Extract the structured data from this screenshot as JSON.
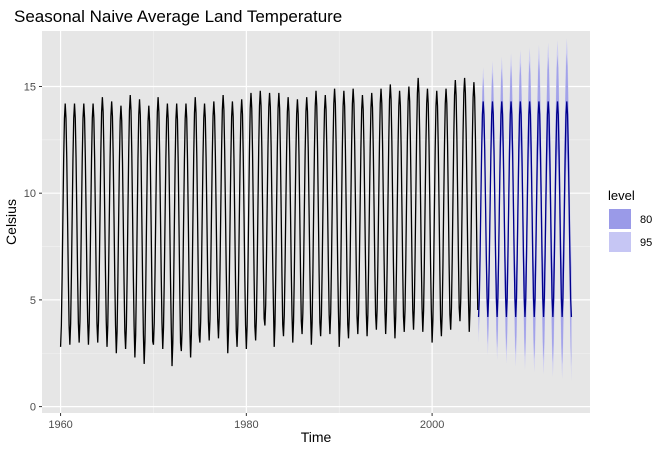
{
  "chart_data": {
    "type": "line",
    "title": "Seasonal Naive Average Land Temperature",
    "xlabel": "Time",
    "ylabel": "Celsius",
    "xlim": [
      1958,
      2017
    ],
    "ylim": [
      -0.3,
      17.6
    ],
    "x_ticks": [
      1960,
      1980,
      2000
    ],
    "y_ticks": [
      0,
      5,
      10,
      15
    ],
    "grid": true,
    "legend": {
      "title": "level",
      "placement": "right",
      "entries": [
        {
          "label": "80",
          "color": "#9a9ae8"
        },
        {
          "label": "95",
          "color": "#c6c6f4"
        }
      ]
    },
    "series": [
      {
        "kind": "observed",
        "color": "#000000",
        "start_year": 1960,
        "frequency": 12,
        "annual_peaks": [
          14.2,
          14.2,
          14.2,
          14.2,
          14.5,
          14.3,
          14.1,
          14.6,
          14.4,
          14.1,
          14.5,
          14.2,
          14.2,
          14.2,
          14.5,
          14.2,
          14.3,
          14.6,
          14.3,
          14.4,
          14.7,
          14.8,
          14.7,
          14.7,
          14.5,
          14.4,
          14.5,
          14.8,
          14.6,
          14.9,
          14.8,
          14.9,
          14.6,
          14.7,
          14.9,
          15.1,
          14.8,
          15.0,
          15.4,
          14.9,
          14.8,
          14.9,
          15.3,
          15.4,
          15.2
        ],
        "annual_troughs": [
          2.8,
          2.9,
          3.0,
          2.9,
          3.0,
          2.8,
          2.5,
          2.7,
          2.3,
          2.0,
          2.9,
          2.7,
          1.9,
          2.6,
          2.3,
          3.0,
          3.1,
          3.2,
          2.5,
          2.8,
          2.7,
          3.1,
          3.8,
          2.8,
          3.3,
          3.0,
          3.4,
          2.9,
          3.3,
          3.4,
          2.8,
          3.2,
          3.4,
          3.3,
          3.6,
          3.4,
          3.2,
          3.5,
          3.6,
          3.5,
          3.0,
          3.3,
          3.6,
          4.0,
          3.5
        ]
      },
      {
        "kind": "forecast",
        "color": "#00008b",
        "start_year": 2005,
        "frequency": 12,
        "years": 10,
        "peak": 14.3,
        "trough": 4.2,
        "interval_80_halfwidth_start": 0.8,
        "interval_80_halfwidth_end": 2.3,
        "interval_95_halfwidth_start": 1.2,
        "interval_95_halfwidth_end": 3.0
      }
    ]
  }
}
